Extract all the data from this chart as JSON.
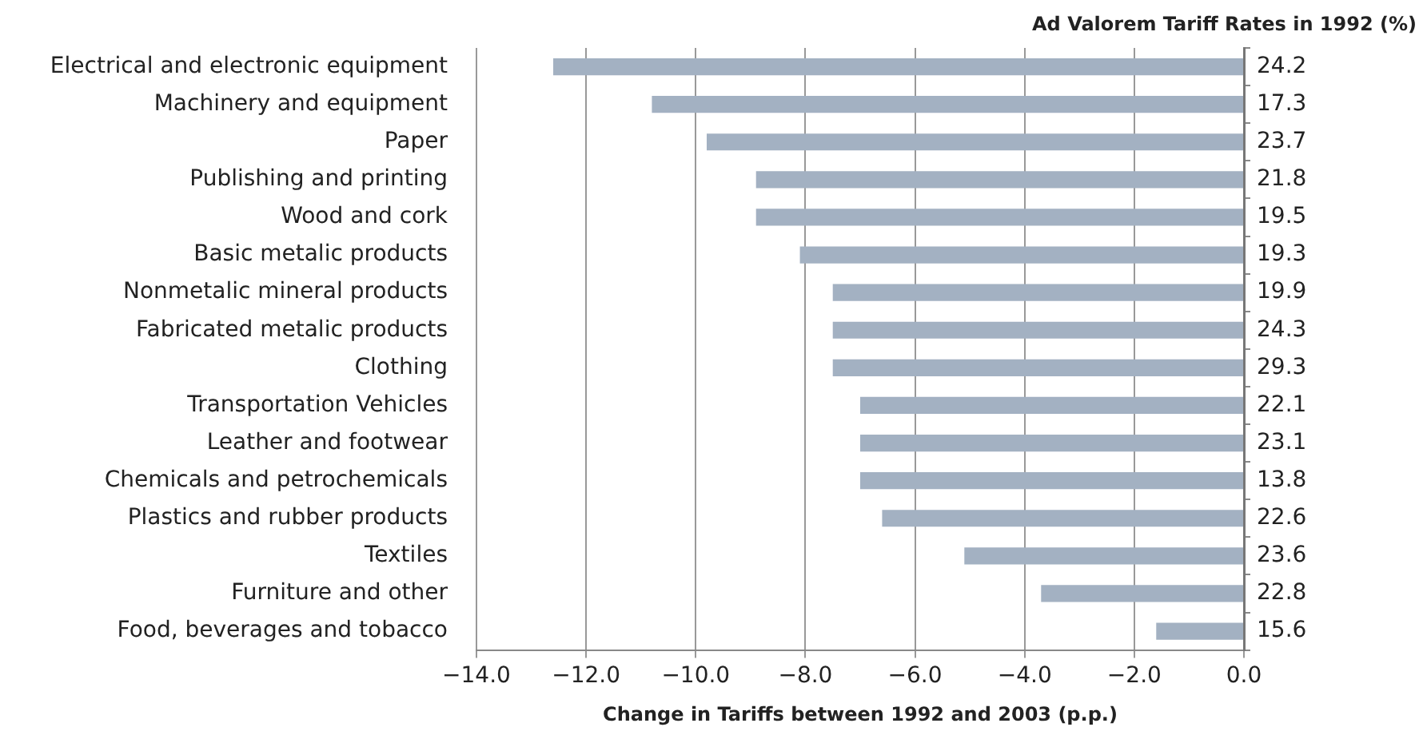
{
  "chart_data": {
    "type": "bar",
    "orientation": "horizontal",
    "categories": [
      "Electrical and electronic equipment",
      "Machinery and equipment",
      "Paper",
      "Publishing and printing",
      "Wood and cork",
      "Basic metalic products",
      "Nonmetalic mineral products",
      "Fabricated metalic products",
      "Clothing",
      "Transportation Vehicles",
      "Leather and footwear",
      "Chemicals and petrochemicals",
      "Plastics and rubber products",
      "Textiles",
      "Furniture and other",
      "Food, beverages and tobacco"
    ],
    "values": [
      -12.6,
      -10.8,
      -9.8,
      -8.9,
      -8.9,
      -8.1,
      -7.5,
      -7.5,
      -7.5,
      -7.0,
      -7.0,
      -7.0,
      -6.6,
      -5.1,
      -3.7,
      -1.6
    ],
    "color": "#a3b1c2",
    "y2label": "Ad Valorem Tariff Rates in 1992 (%)",
    "y2_categories": [
      "24.2",
      "17.3",
      "23.7",
      "21.8",
      "19.5",
      "19.3",
      "19.9",
      "24.3",
      "29.3",
      "22.1",
      "23.1",
      "13.8",
      "22.6",
      "23.6",
      "22.8",
      "15.6"
    ],
    "xlabel": "Change in Tariffs between 1992 and 2003 (p.p.)",
    "xlim": [
      -14,
      0
    ],
    "xticks": [
      {
        "value": -14,
        "label": "−14.0"
      },
      {
        "value": -12,
        "label": "−12.0"
      },
      {
        "value": -10,
        "label": "−10.0"
      },
      {
        "value": -8,
        "label": "−8.0"
      },
      {
        "value": -6,
        "label": "−6.0"
      },
      {
        "value": -4,
        "label": "−4.0"
      },
      {
        "value": -2,
        "label": "−2.0"
      },
      {
        "value": 0,
        "label": "0.0"
      }
    ],
    "grid": "x"
  }
}
